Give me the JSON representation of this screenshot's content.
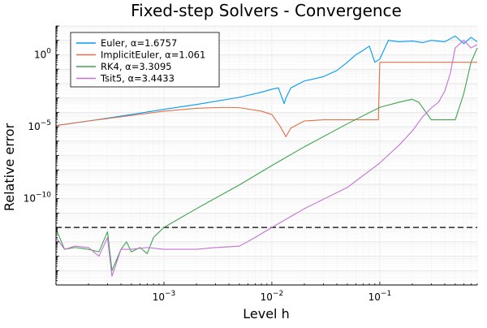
{
  "colors": {
    "euler": "#009AFA",
    "implicit_euler": "#E36F47",
    "rk4": "#3EA44E",
    "tsit5": "#C371D2",
    "reference": "#000000",
    "grid": "#e6e6e6"
  },
  "chart_data": {
    "type": "line",
    "title": "Fixed-step Solvers - Convergence",
    "xlabel": "Level h",
    "ylabel": "Relative error",
    "x_scale": "log10",
    "y_scale": "log10",
    "xlim": [
      0.0001,
      0.8
    ],
    "ylim": [
      1e-16,
      100.0
    ],
    "x_ticks": [
      {
        "value": 0.001,
        "base": "10",
        "exp": "−3"
      },
      {
        "value": 0.01,
        "base": "10",
        "exp": "−2"
      },
      {
        "value": 0.1,
        "base": "10",
        "exp": "−1"
      }
    ],
    "y_ticks": [
      {
        "value": 1,
        "base": "10",
        "exp": "0"
      },
      {
        "value": 1e-05,
        "base": "10",
        "exp": "−5"
      },
      {
        "value": 1e-10,
        "base": "10",
        "exp": "−10"
      }
    ],
    "grid": true,
    "legend_position": "top-left",
    "reference_line": {
      "y": 1e-12,
      "style": "dashed"
    },
    "series": [
      {
        "name": "Euler, α=1.6757",
        "color_key": "euler",
        "points": [
          [
            0.0001,
            1.2e-05
          ],
          [
            0.0002,
            2.5e-05
          ],
          [
            0.0005,
            7e-05
          ],
          [
            0.001,
            0.00016
          ],
          [
            0.002,
            0.00035
          ],
          [
            0.005,
            0.0011
          ],
          [
            0.008,
            0.0025
          ],
          [
            0.01,
            0.004
          ],
          [
            0.0115,
            0.005
          ],
          [
            0.013,
            0.0004
          ],
          [
            0.0135,
            0.001
          ],
          [
            0.015,
            0.005
          ],
          [
            0.02,
            0.015
          ],
          [
            0.03,
            0.03
          ],
          [
            0.04,
            0.08
          ],
          [
            0.05,
            0.3
          ],
          [
            0.06,
            1.0
          ],
          [
            0.07,
            2.0
          ],
          [
            0.08,
            4.0
          ],
          [
            0.09,
            0.3
          ],
          [
            0.1,
            0.5
          ],
          [
            0.12,
            10
          ],
          [
            0.15,
            8
          ],
          [
            0.2,
            9
          ],
          [
            0.25,
            7
          ],
          [
            0.3,
            10
          ],
          [
            0.4,
            8
          ],
          [
            0.5,
            20
          ],
          [
            0.6,
            6
          ],
          [
            0.7,
            16
          ],
          [
            0.8,
            8
          ]
        ]
      },
      {
        "name": "ImplicitEuler, α=1.061",
        "color_key": "implicit_euler",
        "points": [
          [
            0.0001,
            1.2e-05
          ],
          [
            0.0002,
            2.5e-05
          ],
          [
            0.0005,
            6e-05
          ],
          [
            0.001,
            0.00012
          ],
          [
            0.002,
            0.00019
          ],
          [
            0.0035,
            0.00022
          ],
          [
            0.005,
            0.00021
          ],
          [
            0.008,
            0.00012
          ],
          [
            0.01,
            7e-05
          ],
          [
            0.012,
            1e-05
          ],
          [
            0.0135,
            2e-06
          ],
          [
            0.015,
            8e-06
          ],
          [
            0.02,
            2.5e-05
          ],
          [
            0.03,
            3e-05
          ],
          [
            0.05,
            3e-05
          ],
          [
            0.097,
            3e-05
          ],
          [
            0.1,
            0.3
          ],
          [
            0.15,
            0.3
          ],
          [
            0.3,
            0.3
          ],
          [
            0.5,
            0.3
          ],
          [
            0.8,
            0.3
          ]
        ]
      },
      {
        "name": "RK4, α=3.3095",
        "color_key": "rk4",
        "points": [
          [
            0.0001,
            8e-13
          ],
          [
            0.00012,
            3e-14
          ],
          [
            0.00015,
            4e-14
          ],
          [
            0.0002,
            3e-14
          ],
          [
            0.00025,
            2e-14
          ],
          [
            0.0003,
            5e-13
          ],
          [
            0.00033,
            1e-15
          ],
          [
            0.0004,
            3e-14
          ],
          [
            0.00045,
            1e-13
          ],
          [
            0.0005,
            2e-14
          ],
          [
            0.0006,
            4e-14
          ],
          [
            0.0007,
            1.5e-14
          ],
          [
            0.0008,
            2e-13
          ],
          [
            0.001,
            1e-12
          ],
          [
            0.002,
            2e-11
          ],
          [
            0.005,
            9e-10
          ],
          [
            0.01,
            2e-08
          ],
          [
            0.02,
            4e-07
          ],
          [
            0.05,
            1.6e-05
          ],
          [
            0.1,
            0.00022
          ],
          [
            0.15,
            0.0005
          ],
          [
            0.2,
            0.0008
          ],
          [
            0.23,
            0.0005
          ],
          [
            0.3,
            3e-05
          ],
          [
            0.4,
            3e-05
          ],
          [
            0.5,
            3e-05
          ],
          [
            0.6,
            0.002
          ],
          [
            0.7,
            0.3
          ],
          [
            0.8,
            3
          ]
        ]
      },
      {
        "name": "Tsit5, α=3.4433",
        "color_key": "tsit5",
        "points": [
          [
            0.0001,
            2e-13
          ],
          [
            0.00012,
            3e-14
          ],
          [
            0.00015,
            5e-14
          ],
          [
            0.0002,
            4e-14
          ],
          [
            0.00025,
            1e-14
          ],
          [
            0.0003,
            2e-13
          ],
          [
            0.00033,
            4e-16
          ],
          [
            0.0004,
            3e-14
          ],
          [
            0.0005,
            3e-14
          ],
          [
            0.0007,
            4e-14
          ],
          [
            0.001,
            3e-14
          ],
          [
            0.002,
            3e-14
          ],
          [
            0.003,
            4e-14
          ],
          [
            0.005,
            5e-14
          ],
          [
            0.007,
            2e-13
          ],
          [
            0.01,
            1e-12
          ],
          [
            0.02,
            2e-11
          ],
          [
            0.05,
            6e-10
          ],
          [
            0.1,
            3e-08
          ],
          [
            0.15,
            5e-07
          ],
          [
            0.2,
            5e-06
          ],
          [
            0.25,
            5e-05
          ],
          [
            0.3,
            0.0002
          ],
          [
            0.35,
            0.0005
          ],
          [
            0.4,
            0.003
          ],
          [
            0.45,
            0.05
          ],
          [
            0.5,
            3
          ],
          [
            0.6,
            10
          ],
          [
            0.7,
            3
          ],
          [
            0.8,
            5
          ]
        ]
      }
    ]
  }
}
